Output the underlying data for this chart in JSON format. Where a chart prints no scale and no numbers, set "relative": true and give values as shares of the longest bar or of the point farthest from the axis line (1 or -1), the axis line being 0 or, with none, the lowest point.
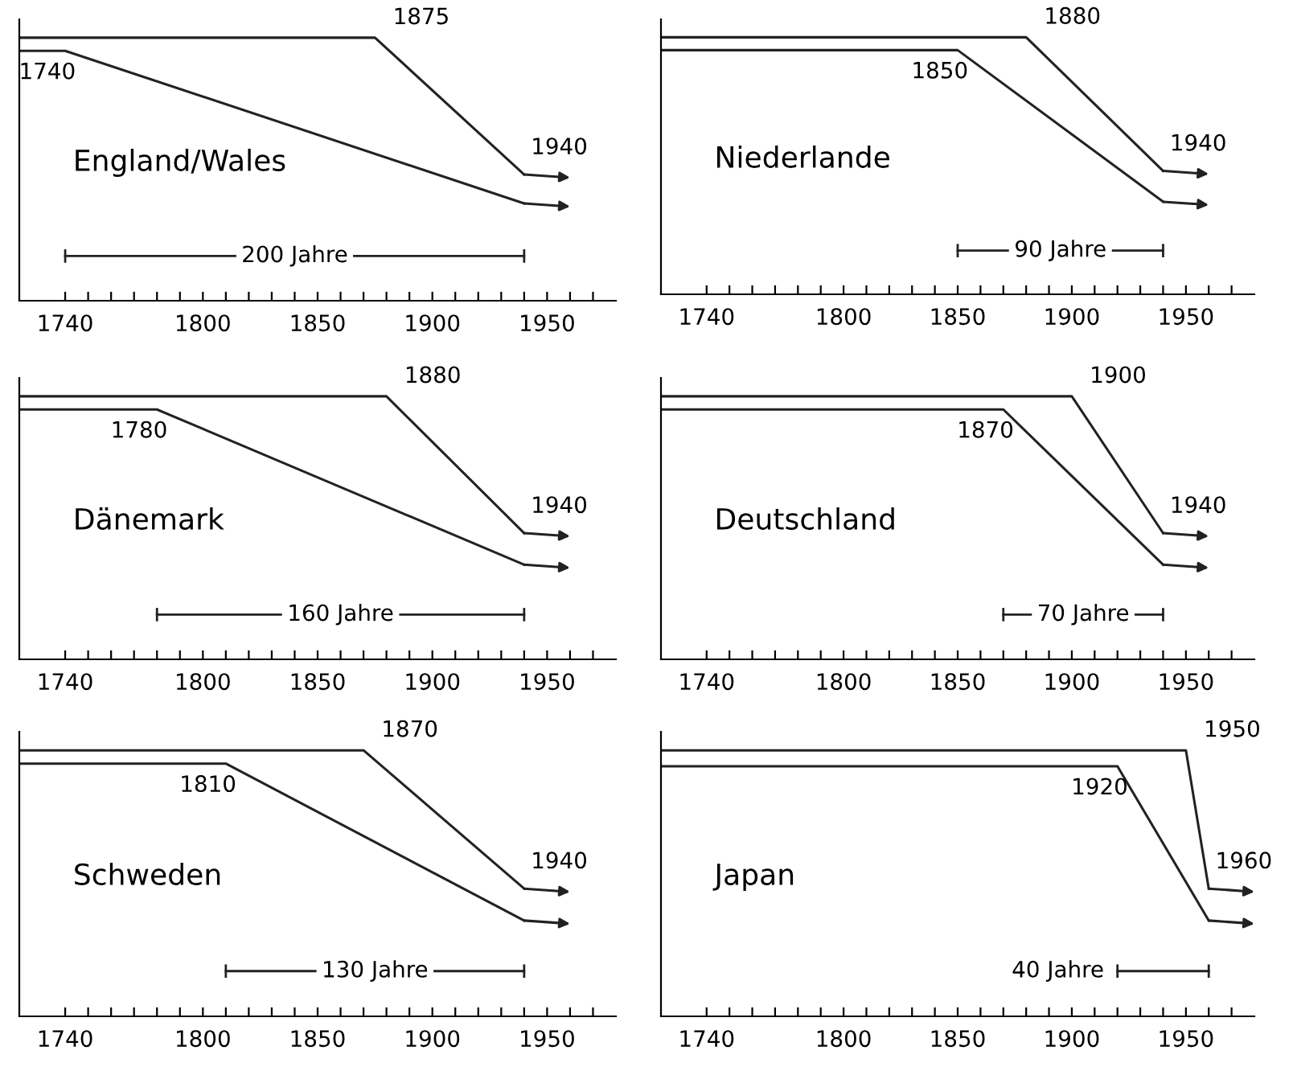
{
  "chart_data": [
    {
      "type": "line",
      "relative": true,
      "title": "England/Wales",
      "xlim": [
        1720,
        1980
      ],
      "xticks": [
        1740,
        {
          "value": 1750,
          "label": null
        },
        {
          "value": 1760,
          "label": null
        },
        {
          "value": 1770,
          "label": null
        },
        {
          "value": 1780,
          "label": null
        },
        {
          "value": 1790,
          "label": null
        },
        1800,
        {
          "value": 1810,
          "label": null
        },
        {
          "value": 1820,
          "label": null
        },
        {
          "value": 1830,
          "label": null
        },
        {
          "value": 1840,
          "label": null
        },
        1850,
        {
          "value": 1860,
          "label": null
        },
        {
          "value": 1870,
          "label": null
        },
        {
          "value": 1880,
          "label": null
        },
        {
          "value": 1890,
          "label": null
        },
        1900,
        {
          "value": 1910,
          "label": null
        },
        {
          "value": 1920,
          "label": null
        },
        {
          "value": 1930,
          "label": null
        },
        {
          "value": 1940,
          "label": null
        },
        1950,
        {
          "value": 1960,
          "label": null
        },
        {
          "value": 1970,
          "label": null
        }
      ],
      "grid": false,
      "legend": false,
      "marker": "none",
      "line_style": "solid",
      "tick_labels": "x",
      "series": [
        {
          "color": "#222222",
          "x": [
            1720,
            1875,
            1940
          ],
          "values": [
            1,
            1,
            0.48
          ]
        },
        {
          "color": "#222222",
          "x": [
            1720,
            1740,
            1940
          ],
          "values": [
            0.95,
            0.95,
            0.37
          ]
        }
      ],
      "annotations": [
        {
          "text": "1875",
          "x": 1875,
          "y": 1
        },
        {
          "text": "1740",
          "x": 1740,
          "y": 0.95
        },
        {
          "text": "1940",
          "x": 1940,
          "y": 0.48
        },
        "200 Jahre"
      ]
    },
    {
      "type": "line",
      "relative": true,
      "title": "Niederlande",
      "xlim": [
        1720,
        1980
      ],
      "xticks": [
        1740,
        {
          "value": 1750,
          "label": null
        },
        {
          "value": 1760,
          "label": null
        },
        {
          "value": 1770,
          "label": null
        },
        {
          "value": 1780,
          "label": null
        },
        {
          "value": 1790,
          "label": null
        },
        1800,
        {
          "value": 1810,
          "label": null
        },
        {
          "value": 1820,
          "label": null
        },
        {
          "value": 1830,
          "label": null
        },
        {
          "value": 1840,
          "label": null
        },
        1850,
        {
          "value": 1860,
          "label": null
        },
        {
          "value": 1870,
          "label": null
        },
        {
          "value": 1880,
          "label": null
        },
        {
          "value": 1890,
          "label": null
        },
        1900,
        {
          "value": 1910,
          "label": null
        },
        {
          "value": 1920,
          "label": null
        },
        {
          "value": 1930,
          "label": null
        },
        {
          "value": 1940,
          "label": null
        },
        1950,
        {
          "value": 1960,
          "label": null
        },
        {
          "value": 1970,
          "label": null
        }
      ],
      "grid": false,
      "legend": false,
      "marker": "none",
      "line_style": "solid",
      "tick_labels": "x",
      "series": [
        {
          "color": "#222222",
          "x": [
            1720,
            1880,
            1940
          ],
          "values": [
            1,
            1,
            0.48
          ]
        },
        {
          "color": "#222222",
          "x": [
            1720,
            1850,
            1940
          ],
          "values": [
            0.95,
            0.95,
            0.36
          ]
        }
      ],
      "annotations": [
        {
          "text": "1880",
          "x": 1880,
          "y": 1
        },
        {
          "text": "1850",
          "x": 1850,
          "y": 0.95
        },
        {
          "text": "1940",
          "x": 1940,
          "y": 0.48
        },
        "90 Jahre"
      ]
    },
    {
      "type": "line",
      "relative": true,
      "title": "Dänemark",
      "xlim": [
        1720,
        1980
      ],
      "xticks": [
        1740,
        {
          "value": 1750,
          "label": null
        },
        {
          "value": 1760,
          "label": null
        },
        {
          "value": 1770,
          "label": null
        },
        {
          "value": 1780,
          "label": null
        },
        {
          "value": 1790,
          "label": null
        },
        1800,
        {
          "value": 1810,
          "label": null
        },
        {
          "value": 1820,
          "label": null
        },
        {
          "value": 1830,
          "label": null
        },
        {
          "value": 1840,
          "label": null
        },
        1850,
        {
          "value": 1860,
          "label": null
        },
        {
          "value": 1870,
          "label": null
        },
        {
          "value": 1880,
          "label": null
        },
        {
          "value": 1890,
          "label": null
        },
        1900,
        {
          "value": 1910,
          "label": null
        },
        {
          "value": 1920,
          "label": null
        },
        {
          "value": 1930,
          "label": null
        },
        {
          "value": 1940,
          "label": null
        },
        1950,
        {
          "value": 1960,
          "label": null
        },
        {
          "value": 1970,
          "label": null
        }
      ],
      "grid": false,
      "legend": false,
      "marker": "none",
      "line_style": "solid",
      "tick_labels": "x",
      "series": [
        {
          "color": "#222222",
          "x": [
            1720,
            1880,
            1940
          ],
          "values": [
            1,
            1,
            0.48
          ]
        },
        {
          "color": "#222222",
          "x": [
            1720,
            1780,
            1940
          ],
          "values": [
            0.95,
            0.95,
            0.36
          ]
        }
      ],
      "annotations": [
        {
          "text": "1880",
          "x": 1880,
          "y": 1
        },
        {
          "text": "1780",
          "x": 1780,
          "y": 0.95
        },
        {
          "text": "1940",
          "x": 1940,
          "y": 0.48
        },
        "160 Jahre"
      ]
    },
    {
      "type": "line",
      "relative": true,
      "title": "Deutschland",
      "xlim": [
        1720,
        1980
      ],
      "xticks": [
        1740,
        {
          "value": 1750,
          "label": null
        },
        {
          "value": 1760,
          "label": null
        },
        {
          "value": 1770,
          "label": null
        },
        {
          "value": 1780,
          "label": null
        },
        {
          "value": 1790,
          "label": null
        },
        1800,
        {
          "value": 1810,
          "label": null
        },
        {
          "value": 1820,
          "label": null
        },
        {
          "value": 1830,
          "label": null
        },
        {
          "value": 1840,
          "label": null
        },
        1850,
        {
          "value": 1860,
          "label": null
        },
        {
          "value": 1870,
          "label": null
        },
        {
          "value": 1880,
          "label": null
        },
        {
          "value": 1890,
          "label": null
        },
        1900,
        {
          "value": 1910,
          "label": null
        },
        {
          "value": 1920,
          "label": null
        },
        {
          "value": 1930,
          "label": null
        },
        {
          "value": 1940,
          "label": null
        },
        1950,
        {
          "value": 1960,
          "label": null
        },
        {
          "value": 1970,
          "label": null
        }
      ],
      "grid": false,
      "legend": false,
      "marker": "none",
      "line_style": "solid",
      "tick_labels": "x",
      "series": [
        {
          "color": "#222222",
          "x": [
            1720,
            1900,
            1940
          ],
          "values": [
            1,
            1,
            0.48
          ]
        },
        {
          "color": "#222222",
          "x": [
            1720,
            1870,
            1940
          ],
          "values": [
            0.95,
            0.95,
            0.36
          ]
        }
      ],
      "annotations": [
        {
          "text": "1900",
          "x": 1900,
          "y": 1
        },
        {
          "text": "1870",
          "x": 1870,
          "y": 0.95
        },
        {
          "text": "1940",
          "x": 1940,
          "y": 0.48
        },
        "70 Jahre"
      ]
    },
    {
      "type": "line",
      "relative": true,
      "title": "Schweden",
      "xlim": [
        1720,
        1980
      ],
      "xticks": [
        1740,
        {
          "value": 1750,
          "label": null
        },
        {
          "value": 1760,
          "label": null
        },
        {
          "value": 1770,
          "label": null
        },
        {
          "value": 1780,
          "label": null
        },
        {
          "value": 1790,
          "label": null
        },
        1800,
        {
          "value": 1810,
          "label": null
        },
        {
          "value": 1820,
          "label": null
        },
        {
          "value": 1830,
          "label": null
        },
        {
          "value": 1840,
          "label": null
        },
        1850,
        {
          "value": 1860,
          "label": null
        },
        {
          "value": 1870,
          "label": null
        },
        {
          "value": 1880,
          "label": null
        },
        {
          "value": 1890,
          "label": null
        },
        1900,
        {
          "value": 1910,
          "label": null
        },
        {
          "value": 1920,
          "label": null
        },
        {
          "value": 1930,
          "label": null
        },
        {
          "value": 1940,
          "label": null
        },
        1950,
        {
          "value": 1960,
          "label": null
        },
        {
          "value": 1970,
          "label": null
        }
      ],
      "grid": false,
      "legend": false,
      "marker": "none",
      "line_style": "solid",
      "tick_labels": "x",
      "series": [
        {
          "color": "#222222",
          "x": [
            1720,
            1870,
            1940
          ],
          "values": [
            1,
            1,
            0.48
          ]
        },
        {
          "color": "#222222",
          "x": [
            1720,
            1810,
            1940
          ],
          "values": [
            0.95,
            0.95,
            0.36
          ]
        }
      ],
      "annotations": [
        {
          "text": "1870",
          "x": 1870,
          "y": 1
        },
        {
          "text": "1810",
          "x": 1810,
          "y": 0.95
        },
        {
          "text": "1940",
          "x": 1940,
          "y": 0.48
        },
        "130 Jahre"
      ]
    },
    {
      "type": "line",
      "relative": true,
      "title": "Japan",
      "xlim": [
        1720,
        1980
      ],
      "xticks": [
        1740,
        {
          "value": 1750,
          "label": null
        },
        {
          "value": 1760,
          "label": null
        },
        {
          "value": 1770,
          "label": null
        },
        {
          "value": 1780,
          "label": null
        },
        {
          "value": 1790,
          "label": null
        },
        1800,
        {
          "value": 1810,
          "label": null
        },
        {
          "value": 1820,
          "label": null
        },
        {
          "value": 1830,
          "label": null
        },
        {
          "value": 1840,
          "label": null
        },
        1850,
        {
          "value": 1860,
          "label": null
        },
        {
          "value": 1870,
          "label": null
        },
        {
          "value": 1880,
          "label": null
        },
        {
          "value": 1890,
          "label": null
        },
        1900,
        {
          "value": 1910,
          "label": null
        },
        {
          "value": 1920,
          "label": null
        },
        {
          "value": 1930,
          "label": null
        },
        {
          "value": 1940,
          "label": null
        },
        1950,
        {
          "value": 1960,
          "label": null
        },
        {
          "value": 1970,
          "label": null
        }
      ],
      "grid": false,
      "legend": false,
      "marker": "none",
      "line_style": "solid",
      "tick_labels": "x",
      "series": [
        {
          "color": "#222222",
          "x": [
            1720,
            1950,
            1960
          ],
          "values": [
            1,
            1,
            0.48
          ]
        },
        {
          "color": "#222222",
          "x": [
            1720,
            1920,
            1960
          ],
          "values": [
            0.94,
            0.94,
            0.36
          ]
        }
      ],
      "annotations": [
        {
          "text": "1950",
          "x": 1950,
          "y": 1
        },
        {
          "text": "1920",
          "x": 1920,
          "y": 0.94
        },
        {
          "text": "1960",
          "x": 1960,
          "y": 0.48
        },
        "40 Jahre"
      ]
    }
  ]
}
